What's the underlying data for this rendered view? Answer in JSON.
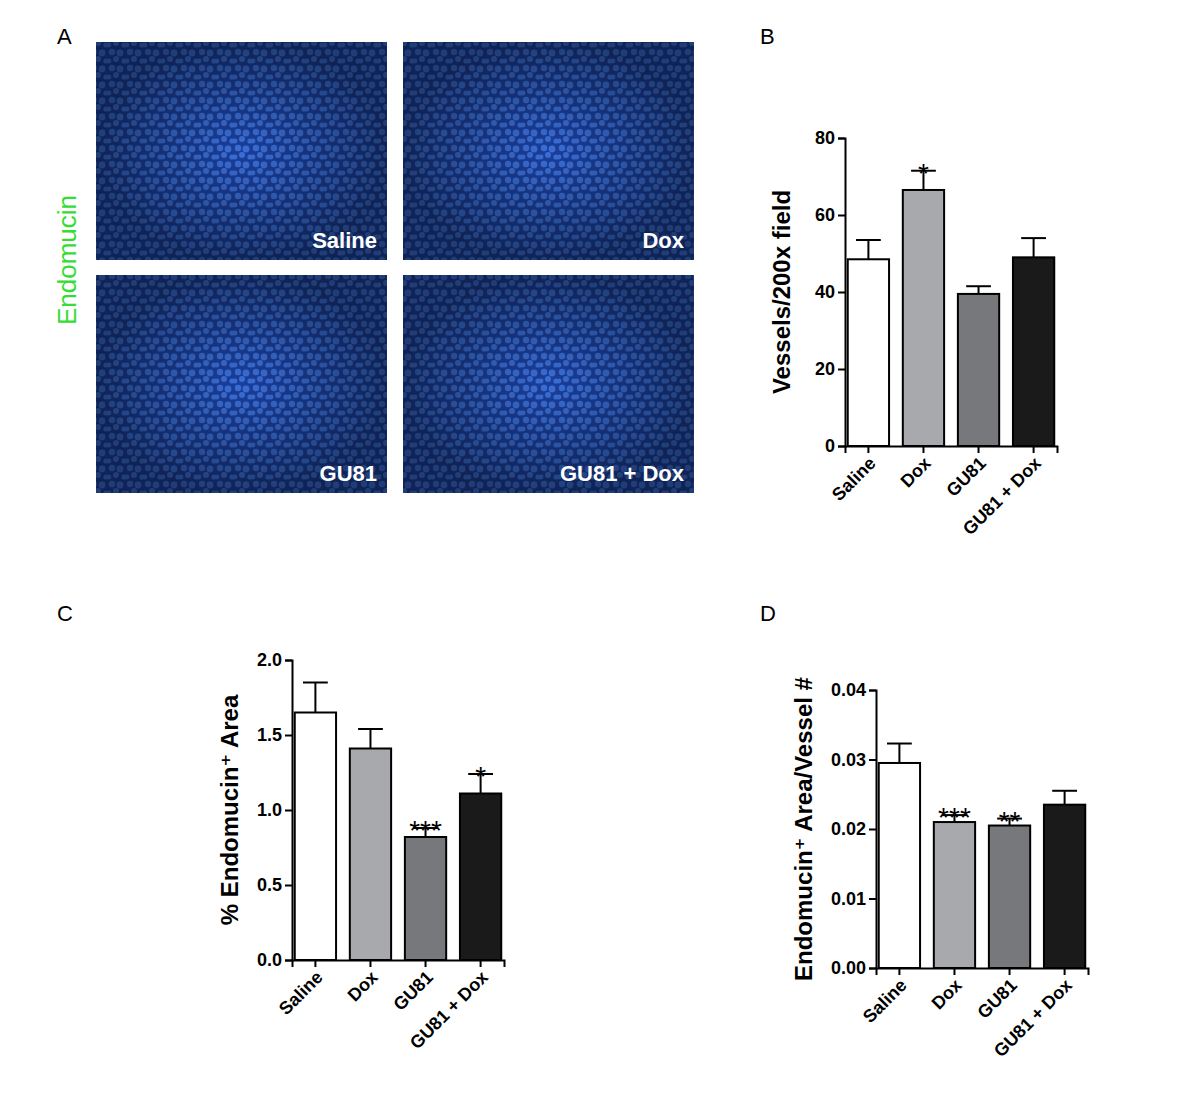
{
  "micrographs": {
    "panel": "A",
    "stain": "Endomucin",
    "labels": [
      "Saline",
      "Dox",
      "GU81",
      "GU81 + Dox"
    ]
  },
  "chart_data": [
    {
      "type": "bar",
      "title": "B",
      "y_label": "Vessels/200x field",
      "categories": [
        "Saline",
        "Dox",
        "GU81",
        "GU81 + Dox"
      ],
      "values": [
        48.5,
        66.5,
        39.5,
        49
      ],
      "errors": [
        5,
        5,
        2,
        5
      ],
      "significance": [
        null,
        "*",
        null,
        null
      ],
      "colors": [
        "#ffffff",
        "#a7a9ac",
        "#77787b",
        "#1a1a1a"
      ],
      "ylim": [
        0,
        80
      ],
      "yticks": [
        0,
        20,
        40,
        60,
        80
      ]
    },
    {
      "type": "bar",
      "title": "C",
      "y_label": "% Endomucin⁺ Area",
      "categories": [
        "Saline",
        "Dox",
        "GU81",
        "GU81 + Dox"
      ],
      "values": [
        1.65,
        1.41,
        0.82,
        1.11
      ],
      "errors": [
        0.2,
        0.13,
        0.06,
        0.13
      ],
      "significance": [
        null,
        null,
        "***",
        "*"
      ],
      "colors": [
        "#ffffff",
        "#a7a9ac",
        "#77787b",
        "#1a1a1a"
      ],
      "ylim": [
        0,
        2
      ],
      "yticks": [
        {
          "value": 0,
          "label": "0.0"
        },
        {
          "value": 0.5,
          "label": "0.5"
        },
        {
          "value": 1,
          "label": "1.0"
        },
        {
          "value": 1.5,
          "label": "1.5"
        },
        {
          "value": 2,
          "label": "2.0"
        }
      ]
    },
    {
      "type": "bar",
      "title": "D",
      "y_label": "Endomucin⁺ Area/Vessel #",
      "categories": [
        "Saline",
        "Dox",
        "GU81",
        "GU81 + Dox"
      ],
      "values": [
        0.0295,
        0.021,
        0.0205,
        0.0235
      ],
      "errors": [
        0.0028,
        0.001,
        0.001,
        0.002
      ],
      "significance": [
        null,
        "***",
        "**",
        null
      ],
      "colors": [
        "#ffffff",
        "#a7a9ac",
        "#77787b",
        "#1a1a1a"
      ],
      "ylim": [
        0,
        0.04
      ],
      "yticks": [
        {
          "value": 0,
          "label": "0.00"
        },
        {
          "value": 0.01,
          "label": "0.01"
        },
        {
          "value": 0.02,
          "label": "0.02"
        },
        {
          "value": 0.03,
          "label": "0.03"
        },
        {
          "value": 0.04,
          "label": "0.04"
        }
      ]
    }
  ]
}
